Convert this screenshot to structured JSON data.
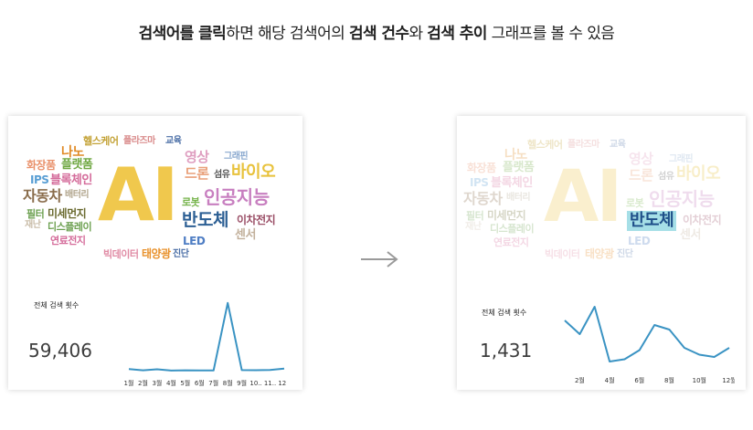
{
  "headline": {
    "seg1": "검색어를 클릭",
    "seg2": "하면 해당 검색어의 ",
    "seg3": "검색 건수",
    "seg4": "와 ",
    "seg5": "검색 추이",
    "seg6": " 그래프를 볼 수 있음"
  },
  "colors": {
    "line": "#3a93c3",
    "text": "#333333",
    "highlight": "#a6dfe7"
  },
  "left_panel": {
    "words": [
      {
        "text": "헬스케어",
        "color": "#c3a235"
      },
      {
        "text": "플라즈마",
        "color": "#d98a8a"
      },
      {
        "text": "교육",
        "color": "#4a6ea6"
      },
      {
        "text": "나노",
        "color": "#e08a26"
      },
      {
        "text": "화장품",
        "color": "#e9916b"
      },
      {
        "text": "플랫폼",
        "color": "#70a843"
      },
      {
        "text": "IPS",
        "color": "#5a9fd4"
      },
      {
        "text": "블록체인",
        "color": "#d46b9a"
      },
      {
        "text": "자동차",
        "color": "#8a6d4c"
      },
      {
        "text": "배터리",
        "color": "#b2a68e"
      },
      {
        "text": "필터",
        "color": "#6ca050"
      },
      {
        "text": "미세먼지",
        "color": "#6a6a2f"
      },
      {
        "text": "재난",
        "color": "#c9bca8"
      },
      {
        "text": "디스플레이",
        "color": "#6ca050"
      },
      {
        "text": "연료전지",
        "color": "#d46b9a"
      },
      {
        "text": "AI",
        "color": "#f0c84d"
      },
      {
        "text": "영상",
        "color": "#df9ec0"
      },
      {
        "text": "그래핀",
        "color": "#8aa9cf"
      },
      {
        "text": "드론",
        "color": "#e9a07a"
      },
      {
        "text": "섬유",
        "color": "#555555"
      },
      {
        "text": "바이오",
        "color": "#e8c23c"
      },
      {
        "text": "로봇",
        "color": "#75b34a"
      },
      {
        "text": "인공지능",
        "color": "#c87fc0"
      },
      {
        "text": "반도체",
        "color": "#2c5f94"
      },
      {
        "text": "이차전지",
        "color": "#9a4e66"
      },
      {
        "text": "LED",
        "color": "#4f7ec4"
      },
      {
        "text": "센서",
        "color": "#c2b09b"
      },
      {
        "text": "빅데이터",
        "color": "#e08aa4"
      },
      {
        "text": "태양광",
        "color": "#e8912b"
      },
      {
        "text": "진단",
        "color": "#4a6ea6"
      }
    ],
    "total_label": "전체 검색 횟수",
    "total_value": "59,406"
  },
  "right_panel": {
    "words": [
      "헬스케어",
      "플라즈마",
      "교육",
      "나노",
      "화장품",
      "플랫폼",
      "IPS",
      "블록체인",
      "자동차",
      "배터리",
      "필터",
      "미세먼지",
      "재난",
      "디스플레이",
      "연료전지",
      "AI",
      "영상",
      "그래핀",
      "드론",
      "섬유",
      "바이오",
      "로봇",
      "인공지능",
      "이차전지",
      "LED",
      "센서",
      "빅데이터",
      "태양광",
      "진단"
    ],
    "selected_word": "반도체",
    "total_label": "전체 검색 횟수",
    "total_value": "1,431"
  },
  "chart_data": [
    {
      "type": "line",
      "categories": [
        "1월",
        "2월",
        "3월",
        "4월",
        "5월",
        "6월",
        "7월",
        "8월",
        "9월",
        "10..",
        "11..",
        "12.."
      ],
      "series": [
        {
          "values": [
            2000,
            1000,
            1800,
            800,
            1000,
            900,
            900,
            55000,
            1200,
            1100,
            1300,
            2400
          ]
        }
      ],
      "ylim": [
        0,
        60000
      ],
      "grid": false
    },
    {
      "type": "line",
      "categories": [
        "2월",
        "4월",
        "6월",
        "8월",
        "10월",
        "12월"
      ],
      "x": [
        1,
        2,
        3,
        4,
        5,
        6,
        7,
        8,
        9,
        10,
        11,
        12
      ],
      "series": [
        {
          "values": [
            220,
            190,
            250,
            130,
            135,
            155,
            210,
            200,
            160,
            145,
            140,
            160
          ]
        }
      ],
      "ylim": [
        120,
        260
      ],
      "grid": false
    }
  ]
}
